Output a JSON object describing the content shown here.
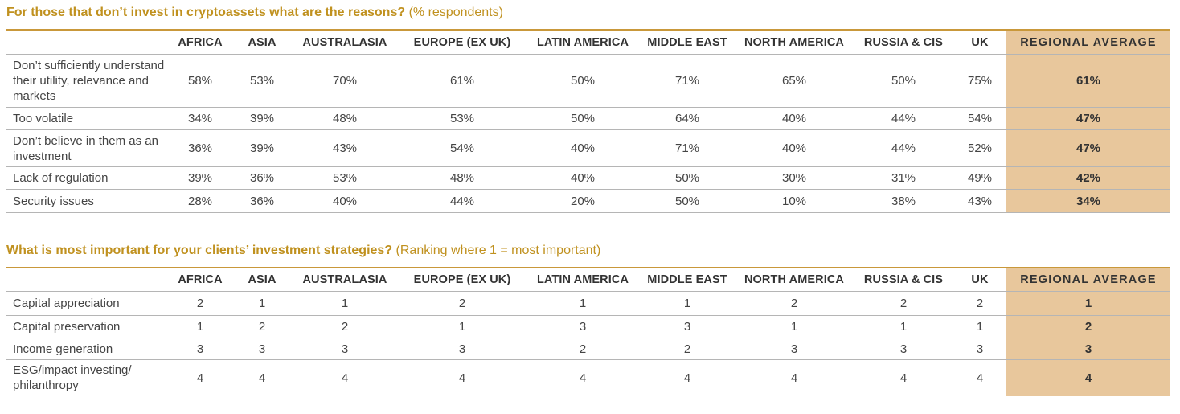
{
  "chart_data": [
    {
      "type": "table",
      "title": "For those that don’t invest in cryptoassets what are the reasons?",
      "subtitle": "(% respondents)",
      "columns": [
        "AFRICA",
        "ASIA",
        "AUSTRALASIA",
        "EUROPE (EX UK)",
        "LATIN AMERICA",
        "MIDDLE EAST",
        "NORTH AMERICA",
        "RUSSIA & CIS",
        "UK",
        "REGIONAL AVERAGE"
      ],
      "rows": [
        {
          "label": "Don’t sufficiently understand their utility, relevance and markets",
          "values": [
            "58%",
            "53%",
            "70%",
            "61%",
            "50%",
            "71%",
            "65%",
            "50%",
            "75%",
            "61%"
          ]
        },
        {
          "label": "Too volatile",
          "values": [
            "34%",
            "39%",
            "48%",
            "53%",
            "50%",
            "64%",
            "40%",
            "44%",
            "54%",
            "47%"
          ]
        },
        {
          "label": "Don’t believe in them as an investment",
          "values": [
            "36%",
            "39%",
            "43%",
            "54%",
            "40%",
            "71%",
            "40%",
            "44%",
            "52%",
            "47%"
          ]
        },
        {
          "label": "Lack of regulation",
          "values": [
            "39%",
            "36%",
            "53%",
            "48%",
            "40%",
            "50%",
            "30%",
            "31%",
            "49%",
            "42%"
          ]
        },
        {
          "label": "Security issues",
          "values": [
            "28%",
            "36%",
            "40%",
            "44%",
            "20%",
            "50%",
            "10%",
            "38%",
            "43%",
            "34%"
          ]
        }
      ]
    },
    {
      "type": "table",
      "title": "What is most important for your clients’ investment strategies?",
      "subtitle": "(Ranking where 1 = most important)",
      "columns": [
        "AFRICA",
        "ASIA",
        "AUSTRALASIA",
        "EUROPE (EX UK)",
        "LATIN AMERICA",
        "MIDDLE EAST",
        "NORTH AMERICA",
        "RUSSIA & CIS",
        "UK",
        "REGIONAL AVERAGE"
      ],
      "rows": [
        {
          "label": "Capital appreciation",
          "values": [
            "2",
            "1",
            "1",
            "2",
            "1",
            "1",
            "2",
            "2",
            "2",
            "1"
          ]
        },
        {
          "label": "Capital preservation",
          "values": [
            "1",
            "2",
            "2",
            "1",
            "3",
            "3",
            "1",
            "1",
            "1",
            "2"
          ]
        },
        {
          "label": "Income generation",
          "values": [
            "3",
            "3",
            "3",
            "3",
            "2",
            "2",
            "3",
            "3",
            "3",
            "3"
          ]
        },
        {
          "label": "ESG/impact investing/ philanthropy",
          "values": [
            "4",
            "4",
            "4",
            "4",
            "4",
            "4",
            "4",
            "4",
            "4",
            "4"
          ]
        }
      ]
    }
  ],
  "colors": {
    "accent": "#c0911f",
    "rule": "#c9983a",
    "highlight": "#e8c79c",
    "divider": "#b5b5b5"
  }
}
